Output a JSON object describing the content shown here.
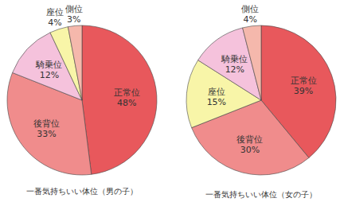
{
  "chart_data": [
    {
      "type": "pie",
      "title": "一番気持ちいい体位（男の子）",
      "categories": [
        "正常位",
        "後背位",
        "騎乗位",
        "座位",
        "側位"
      ],
      "values": [
        48,
        33,
        12,
        4,
        3
      ],
      "value_labels": [
        "48%",
        "33%",
        "12%",
        "4%",
        "3%"
      ],
      "colors": [
        "#e8585c",
        "#f08c8c",
        "#f5c2dc",
        "#f8f5a8",
        "#f5b8ac"
      ],
      "data_labels": true
    },
    {
      "type": "pie",
      "title": "一番気持ちいい体位（女の子）",
      "categories": [
        "正常位",
        "後背位",
        "座位",
        "騎乗位",
        "側位"
      ],
      "values": [
        39,
        30,
        15,
        12,
        4
      ],
      "value_labels": [
        "39%",
        "30%",
        "15%",
        "12%",
        "4%"
      ],
      "colors": [
        "#e8585c",
        "#f08c8c",
        "#f8f5a8",
        "#f5c2dc",
        "#f5b8ac"
      ],
      "data_labels": true
    }
  ]
}
